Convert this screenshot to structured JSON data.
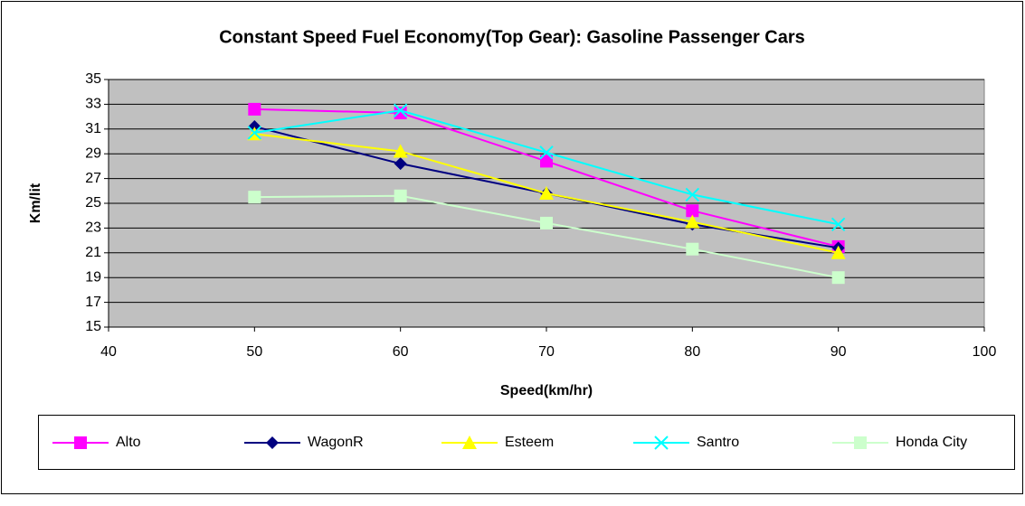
{
  "chart_data": {
    "type": "line",
    "title": "Constant Speed Fuel Economy(Top Gear): Gasoline Passenger Cars",
    "x_label": "Speed(km/hr)",
    "y_label": "Km/lit",
    "x": [
      50,
      60,
      70,
      80,
      90
    ],
    "series": [
      {
        "name": "Alto",
        "color": "#ff00ff",
        "marker": "square",
        "values": [
          32.6,
          32.3,
          28.4,
          24.4,
          21.5
        ]
      },
      {
        "name": "WagonR",
        "color": "#000080",
        "marker": "diamond",
        "values": [
          31.2,
          28.2,
          25.8,
          23.3,
          21.4
        ]
      },
      {
        "name": "Esteem",
        "color": "#ffff00",
        "marker": "triangle",
        "values": [
          30.6,
          29.2,
          25.8,
          23.5,
          21.0
        ]
      },
      {
        "name": "Santro",
        "color": "#00ffff",
        "marker": "x",
        "values": [
          30.7,
          32.5,
          29.1,
          25.7,
          23.3
        ]
      },
      {
        "name": "Honda City",
        "color": "#ccffcc",
        "marker": "square",
        "values": [
          25.5,
          25.6,
          23.4,
          21.3,
          19.0
        ]
      }
    ],
    "xlim": [
      40,
      100
    ],
    "xticks": [
      40,
      50,
      60,
      70,
      80,
      90,
      100
    ],
    "ylim": [
      15,
      35
    ],
    "yticks": [
      15,
      17,
      19,
      21,
      23,
      25,
      27,
      29,
      31,
      33,
      35
    ],
    "grid": true,
    "legend": "bottom"
  }
}
